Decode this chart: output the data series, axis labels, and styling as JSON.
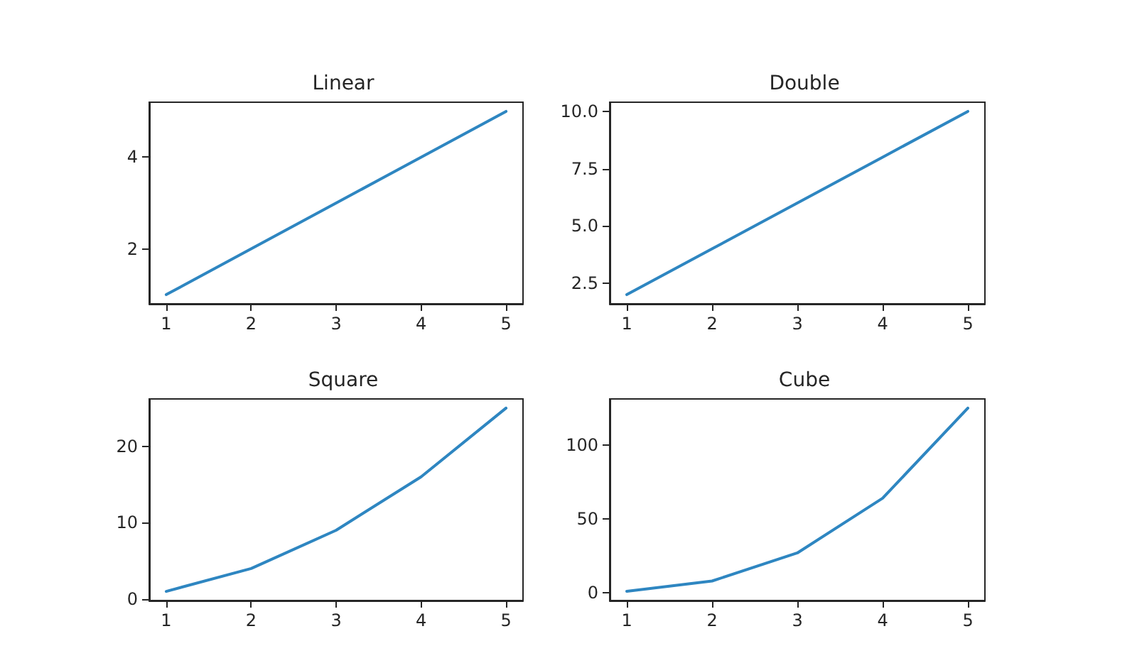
{
  "chart_data": [
    {
      "type": "line",
      "title": "Linear",
      "x": [
        1,
        2,
        3,
        4,
        5
      ],
      "values": [
        1,
        2,
        3,
        4,
        5
      ],
      "color": "#2e86c1",
      "xlim": [
        0.8,
        5.2
      ],
      "xticks": [
        1,
        2,
        3,
        4,
        5
      ],
      "ylim": [
        0.8,
        5.2
      ],
      "yticks": [
        2,
        4
      ]
    },
    {
      "type": "line",
      "title": "Double",
      "x": [
        1,
        2,
        3,
        4,
        5
      ],
      "values": [
        2,
        4,
        6,
        8,
        10
      ],
      "color": "#2e86c1",
      "xlim": [
        0.8,
        5.2
      ],
      "xticks": [
        1,
        2,
        3,
        4,
        5
      ],
      "ylim": [
        1.6,
        10.4
      ],
      "yticks": [
        {
          "value": 2.5,
          "label": "2.5"
        },
        {
          "value": 5,
          "label": "5.0"
        },
        {
          "value": 7.5,
          "label": "7.5"
        },
        {
          "value": 10,
          "label": "10.0"
        }
      ]
    },
    {
      "type": "line",
      "title": "Square",
      "x": [
        1,
        2,
        3,
        4,
        5
      ],
      "values": [
        1,
        4,
        9,
        16,
        25
      ],
      "color": "#2e86c1",
      "xlim": [
        0.8,
        5.2
      ],
      "xticks": [
        1,
        2,
        3,
        4,
        5
      ],
      "ylim": [
        -0.2,
        26.2
      ],
      "yticks": [
        0,
        10,
        20
      ]
    },
    {
      "type": "line",
      "title": "Cube",
      "x": [
        1,
        2,
        3,
        4,
        5
      ],
      "values": [
        1,
        8,
        27,
        64,
        125
      ],
      "color": "#2e86c1",
      "xlim": [
        0.8,
        5.2
      ],
      "xticks": [
        1,
        2,
        3,
        4,
        5
      ],
      "ylim": [
        -5.2,
        131.2
      ],
      "yticks": [
        0,
        50,
        100
      ]
    }
  ]
}
